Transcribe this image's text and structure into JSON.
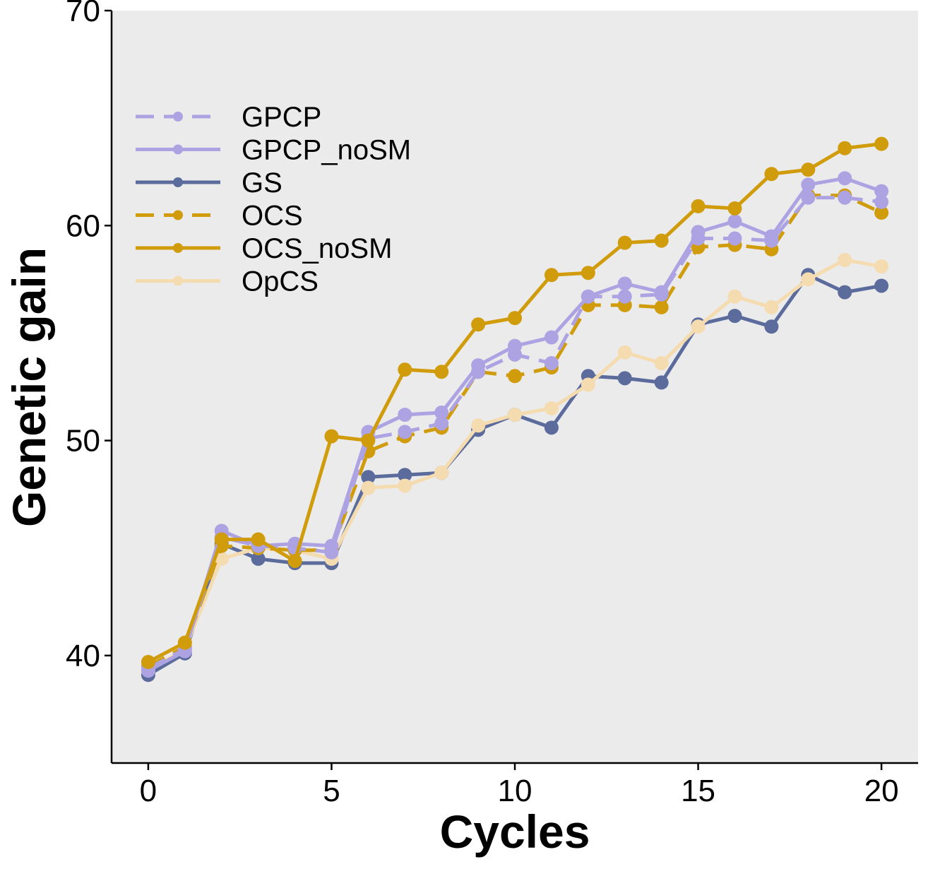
{
  "chart_data": {
    "type": "line",
    "xlabel": "Cycles",
    "ylabel": "Genetic gain",
    "xlim": [
      -1,
      21
    ],
    "ylim": [
      35,
      70
    ],
    "xticks": [
      0,
      5,
      10,
      15,
      20
    ],
    "yticks": [
      40,
      50,
      60,
      70
    ],
    "grid": false,
    "legend_position": "top-left",
    "x": [
      0,
      1,
      2,
      3,
      4,
      5,
      6,
      7,
      8,
      9,
      10,
      11,
      12,
      13,
      14,
      15,
      16,
      17,
      18,
      19,
      20
    ],
    "series": [
      {
        "name": "GPCP",
        "color": "#ada3e3",
        "dashed": true,
        "values": [
          39.4,
          40.3,
          45.5,
          45.1,
          45.0,
          44.8,
          50.1,
          50.4,
          50.8,
          53.2,
          54.0,
          53.6,
          56.7,
          56.7,
          56.8,
          59.4,
          59.4,
          59.3,
          61.3,
          61.3,
          61.1
        ]
      },
      {
        "name": "GPCP_noSM",
        "color": "#ada3e3",
        "dashed": false,
        "values": [
          39.3,
          40.2,
          45.8,
          45.1,
          45.2,
          45.1,
          50.4,
          51.2,
          51.3,
          53.5,
          54.4,
          54.8,
          56.7,
          57.3,
          56.9,
          59.7,
          60.2,
          59.5,
          61.9,
          62.2,
          61.6
        ]
      },
      {
        "name": "GS",
        "color": "#5a6b9c",
        "dashed": false,
        "values": [
          39.1,
          40.1,
          45.2,
          44.5,
          44.3,
          44.3,
          48.3,
          48.4,
          48.5,
          50.5,
          51.2,
          50.6,
          53.0,
          52.9,
          52.7,
          55.4,
          55.8,
          55.3,
          57.7,
          56.9,
          57.2
        ]
      },
      {
        "name": "OCS",
        "color": "#d09c0c",
        "dashed": true,
        "values": [
          39.5,
          40.4,
          45.1,
          45.0,
          44.9,
          44.9,
          49.5,
          50.2,
          50.6,
          53.2,
          53.0,
          53.4,
          56.3,
          56.3,
          56.2,
          59.0,
          59.1,
          58.9,
          61.4,
          61.4,
          60.6
        ]
      },
      {
        "name": "OCS_noSM",
        "color": "#d09c0c",
        "dashed": false,
        "values": [
          39.7,
          40.6,
          45.4,
          45.4,
          44.4,
          50.2,
          50.0,
          53.3,
          53.2,
          55.4,
          55.7,
          57.7,
          57.8,
          59.2,
          59.3,
          60.9,
          60.8,
          62.4,
          62.6,
          63.6,
          63.8
        ]
      },
      {
        "name": "OpCS",
        "color": "#f5dcb0",
        "dashed": false,
        "values": [
          39.3,
          40.3,
          44.5,
          45.0,
          44.9,
          44.5,
          47.8,
          47.9,
          48.5,
          50.7,
          51.2,
          51.5,
          52.6,
          54.1,
          53.6,
          55.3,
          56.7,
          56.2,
          57.5,
          58.4,
          58.1
        ]
      }
    ]
  }
}
